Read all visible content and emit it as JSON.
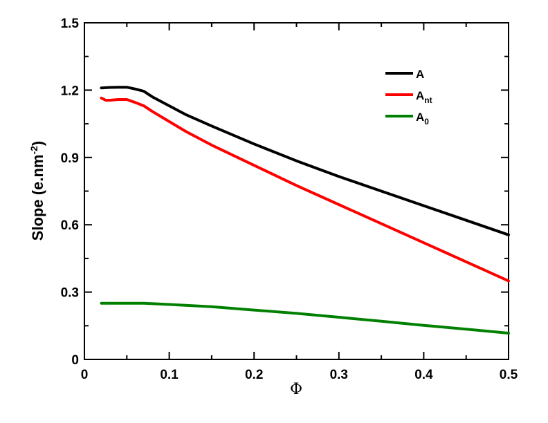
{
  "chart_data": {
    "type": "line",
    "xlabel": "Φ",
    "ylabel": "Slope (e.nm",
    "ylabel_sup": "-2",
    "ylabel_close": ")",
    "xlim": [
      0,
      0.5
    ],
    "ylim": [
      0,
      1.5
    ],
    "xticks": [
      0,
      0.1,
      0.2,
      0.3,
      0.4,
      0.5
    ],
    "xtick_labels": [
      "0",
      "0.1",
      "0.2",
      "0.3",
      "0.4",
      "0.5"
    ],
    "yticks": [
      0,
      0.3,
      0.6,
      0.9,
      1.2,
      1.5
    ],
    "ytick_labels": [
      "0",
      "0.3",
      "0.6",
      "0.9",
      "1.2",
      "1.5"
    ],
    "grid": false,
    "legend_position": "top-right",
    "series": [
      {
        "name": "A",
        "base": "A",
        "sub": "",
        "color": "#000000",
        "x": [
          0.02,
          0.03,
          0.04,
          0.05,
          0.06,
          0.07,
          0.08,
          0.1,
          0.12,
          0.15,
          0.2,
          0.25,
          0.3,
          0.35,
          0.4,
          0.45,
          0.5
        ],
        "y": [
          1.21,
          1.212,
          1.213,
          1.213,
          1.205,
          1.195,
          1.17,
          1.13,
          1.09,
          1.04,
          0.96,
          0.885,
          0.815,
          0.75,
          0.685,
          0.62,
          0.555
        ]
      },
      {
        "name": "Ant",
        "base": "A",
        "sub": "nt",
        "color": "#ff0000",
        "x": [
          0.02,
          0.025,
          0.03,
          0.04,
          0.05,
          0.06,
          0.07,
          0.08,
          0.1,
          0.12,
          0.15,
          0.2,
          0.25,
          0.3,
          0.35,
          0.4,
          0.45,
          0.5
        ],
        "y": [
          1.165,
          1.155,
          1.155,
          1.158,
          1.158,
          1.145,
          1.13,
          1.105,
          1.06,
          1.015,
          0.955,
          0.865,
          0.775,
          0.69,
          0.605,
          0.52,
          0.435,
          0.35
        ]
      },
      {
        "name": "A0",
        "base": "A",
        "sub": "0",
        "color": "#008000",
        "x": [
          0.02,
          0.05,
          0.07,
          0.1,
          0.15,
          0.2,
          0.25,
          0.3,
          0.35,
          0.4,
          0.45,
          0.5
        ],
        "y": [
          0.25,
          0.25,
          0.25,
          0.245,
          0.235,
          0.22,
          0.205,
          0.188,
          0.17,
          0.152,
          0.135,
          0.117
        ]
      }
    ]
  }
}
